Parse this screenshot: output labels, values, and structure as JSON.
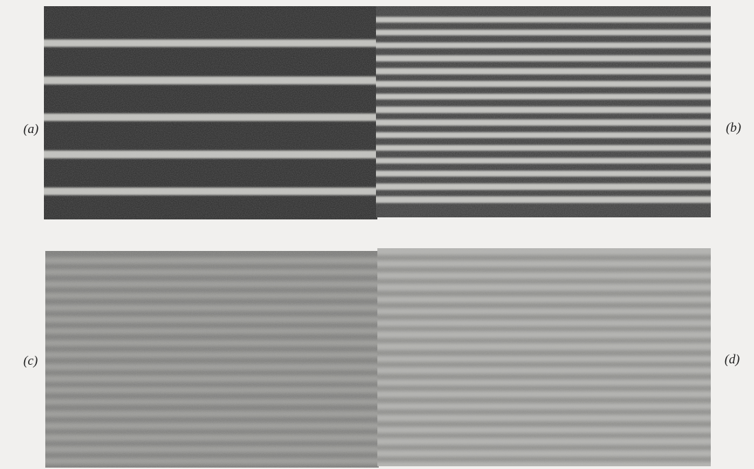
{
  "labels": {
    "a": "(a)",
    "b": "(b)",
    "c": "(c)",
    "d": "(d)"
  },
  "colors": {
    "page_background": "#f1f0ee",
    "label_text": "#222222"
  },
  "panels": {
    "a": {
      "label": "a",
      "stripe_count": 5,
      "background": "#262626",
      "stripe_color": "#c4c4c0"
    },
    "b": {
      "label": "b",
      "stripe_count": 15,
      "background": "#3a3a3a",
      "stripe_color": "#c6c6c2"
    },
    "c": {
      "label": "c",
      "stripe_count": 18,
      "background": "#7a7a78",
      "stripe_color": "#9b9b98"
    },
    "d": {
      "label": "d",
      "stripe_count": 18,
      "background": "#b3b3b0",
      "stripe_color": "#8d8d8a"
    }
  }
}
